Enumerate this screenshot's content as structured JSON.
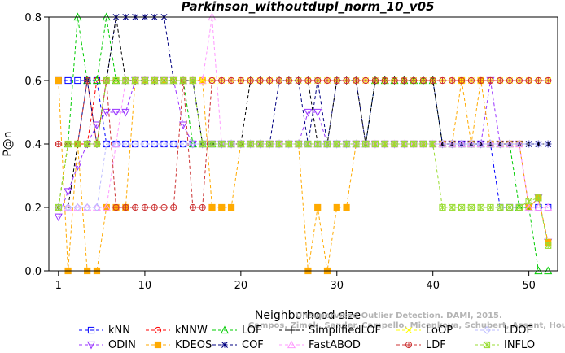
{
  "chart_data": {
    "type": "line",
    "title": "Parkinson_withoutdupl_norm_10_v05",
    "xlabel": "Neighborhood size",
    "ylabel": "P@n",
    "xlim": [
      0,
      53
    ],
    "ylim": [
      0,
      0.8
    ],
    "xticks": [
      1,
      10,
      20,
      30,
      40,
      50
    ],
    "yticks": [
      0.0,
      0.2,
      0.4,
      0.6,
      0.8
    ],
    "grid": false,
    "legend_position": "bottom",
    "watermark": "Unsupervised Outlier Detection. DAMI, 2015. Campos, Zimek, Sander, Campello, Micenkova, Schubert, Assent, Houle",
    "x": [
      1,
      2,
      3,
      4,
      5,
      6,
      7,
      8,
      9,
      10,
      11,
      12,
      13,
      14,
      15,
      16,
      17,
      18,
      19,
      20,
      21,
      22,
      23,
      24,
      25,
      26,
      27,
      28,
      29,
      30,
      31,
      32,
      33,
      34,
      35,
      36,
      37,
      38,
      39,
      40,
      41,
      42,
      43,
      44,
      45,
      46,
      47,
      48,
      49,
      50,
      51,
      52
    ],
    "series": [
      {
        "name": "kNN",
        "color": "#0000ff",
        "marker": "square",
        "values": [
          0.6,
          0.6,
          0.6,
          0.6,
          0.6,
          0.4,
          0.4,
          0.4,
          0.4,
          0.4,
          0.4,
          0.4,
          0.4,
          0.4,
          0.4,
          0.4,
          0.4,
          0.4,
          0.4,
          0.4,
          0.4,
          0.4,
          0.4,
          0.4,
          0.4,
          0.4,
          0.4,
          0.4,
          0.4,
          0.4,
          0.4,
          0.4,
          0.4,
          0.4,
          0.4,
          0.4,
          0.4,
          0.4,
          0.4,
          0.4,
          0.4,
          0.4,
          0.4,
          0.4,
          0.4,
          0.4,
          0.2,
          0.2,
          0.2,
          0.2,
          0.2,
          0.2
        ]
      },
      {
        "name": "ODIN",
        "color": "#9933ff",
        "marker": "triangle-down",
        "values": [
          0.17,
          0.25,
          0.33,
          0.4,
          0.46,
          0.5,
          0.5,
          0.5,
          0.6,
          0.6,
          0.6,
          0.6,
          0.6,
          0.46,
          0.4,
          0.4,
          0.4,
          0.4,
          0.4,
          0.4,
          0.4,
          0.4,
          0.4,
          0.4,
          0.4,
          0.4,
          0.5,
          0.5,
          0.4,
          0.4,
          0.4,
          0.4,
          0.4,
          0.4,
          0.4,
          0.4,
          0.4,
          0.4,
          0.4,
          0.4,
          0.4,
          0.4,
          0.4,
          0.4,
          0.4,
          0.6,
          0.4,
          0.4,
          0.4,
          0.2,
          0.23,
          0.09
        ]
      },
      {
        "name": "kNNW",
        "color": "#ff0000",
        "marker": "circle",
        "values": [
          0.4,
          0.4,
          0.4,
          0.4,
          0.6,
          0.6,
          0.6,
          0.6,
          0.6,
          0.6,
          0.6,
          0.6,
          0.6,
          0.6,
          0.6,
          0.6,
          0.6,
          0.6,
          0.6,
          0.6,
          0.6,
          0.6,
          0.6,
          0.6,
          0.6,
          0.6,
          0.6,
          0.6,
          0.6,
          0.6,
          0.6,
          0.6,
          0.6,
          0.6,
          0.6,
          0.6,
          0.6,
          0.6,
          0.6,
          0.6,
          0.6,
          0.6,
          0.6,
          0.6,
          0.6,
          0.6,
          0.6,
          0.6,
          0.6,
          0.6,
          0.6,
          0.6
        ]
      },
      {
        "name": "KDEOS",
        "color": "#ffaa00",
        "marker": "square-filled",
        "values": [
          0.6,
          0.0,
          0.4,
          0.0,
          0.0,
          0.2,
          0.2,
          0.2,
          0.6,
          0.6,
          0.6,
          0.6,
          0.6,
          0.6,
          0.6,
          0.6,
          0.2,
          0.2,
          0.2,
          0.4,
          0.4,
          0.4,
          0.4,
          0.4,
          0.4,
          0.4,
          0.0,
          0.2,
          0.0,
          0.2,
          0.2,
          0.4,
          0.4,
          0.4,
          0.4,
          0.4,
          0.4,
          0.4,
          0.4,
          0.4,
          0.4,
          0.4,
          0.6,
          0.4,
          0.6,
          0.4,
          0.4,
          0.4,
          0.4,
          0.2,
          0.23,
          0.09
        ]
      },
      {
        "name": "LOF",
        "color": "#00cc00",
        "marker": "triangle-up",
        "values": [
          0.2,
          0.4,
          0.8,
          0.6,
          0.6,
          0.8,
          0.6,
          0.6,
          0.6,
          0.6,
          0.6,
          0.6,
          0.6,
          0.6,
          0.4,
          0.4,
          0.4,
          0.4,
          0.4,
          0.4,
          0.4,
          0.4,
          0.4,
          0.4,
          0.4,
          0.4,
          0.4,
          0.4,
          0.4,
          0.4,
          0.4,
          0.4,
          0.4,
          0.6,
          0.6,
          0.6,
          0.6,
          0.6,
          0.6,
          0.6,
          0.4,
          0.4,
          0.4,
          0.4,
          0.4,
          0.4,
          0.4,
          0.4,
          0.2,
          0.2,
          0.0,
          0.0
        ]
      },
      {
        "name": "COF",
        "color": "#000080",
        "marker": "star",
        "values": [
          0.2,
          0.4,
          0.4,
          0.6,
          0.4,
          0.6,
          0.8,
          0.8,
          0.8,
          0.8,
          0.8,
          0.8,
          0.6,
          0.6,
          0.6,
          0.4,
          0.4,
          0.4,
          0.4,
          0.4,
          0.4,
          0.4,
          0.4,
          0.6,
          0.6,
          0.6,
          0.4,
          0.6,
          0.4,
          0.6,
          0.6,
          0.6,
          0.4,
          0.6,
          0.6,
          0.6,
          0.6,
          0.6,
          0.6,
          0.6,
          0.4,
          0.4,
          0.4,
          0.4,
          0.4,
          0.4,
          0.4,
          0.4,
          0.4,
          0.4,
          0.4,
          0.4
        ]
      },
      {
        "name": "SimplifiedLOF",
        "color": "#000000",
        "marker": "plus",
        "values": [
          0.2,
          0.2,
          0.4,
          0.4,
          0.4,
          0.6,
          0.8,
          0.6,
          0.6,
          0.6,
          0.6,
          0.6,
          0.6,
          0.6,
          0.6,
          0.4,
          0.4,
          0.4,
          0.4,
          0.4,
          0.6,
          0.6,
          0.6,
          0.6,
          0.6,
          0.6,
          0.6,
          0.4,
          0.4,
          0.6,
          0.6,
          0.6,
          0.4,
          0.6,
          0.6,
          0.6,
          0.6,
          0.6,
          0.6,
          0.6,
          0.4,
          0.4,
          0.4,
          0.4,
          0.4,
          0.4,
          0.4,
          0.4,
          0.4,
          0.4,
          0.4,
          0.4
        ]
      },
      {
        "name": "FastABOD",
        "color": "#ff99ff",
        "marker": "triangle-up",
        "values": [
          0.2,
          0.2,
          0.2,
          0.2,
          0.2,
          0.2,
          0.4,
          0.6,
          0.6,
          0.6,
          0.6,
          0.6,
          0.6,
          0.6,
          0.6,
          0.6,
          0.8,
          0.4,
          0.4,
          0.4,
          0.4,
          0.4,
          0.4,
          0.4,
          0.4,
          0.4,
          0.4,
          0.4,
          0.4,
          0.4,
          0.4,
          0.4,
          0.4,
          0.4,
          0.4,
          0.4,
          0.4,
          0.4,
          0.4,
          0.4,
          0.4,
          0.4,
          0.4,
          0.4,
          0.4,
          0.4,
          0.4,
          0.4,
          0.4,
          0.2,
          0.2,
          0.2
        ]
      },
      {
        "name": "LoOP",
        "color": "#ffff00",
        "marker": "x",
        "values": [
          0.2,
          0.4,
          0.4,
          0.4,
          0.4,
          0.6,
          0.6,
          0.6,
          0.6,
          0.6,
          0.6,
          0.6,
          0.6,
          0.6,
          0.6,
          0.6,
          0.6,
          0.6,
          0.6,
          0.6,
          0.6,
          0.6,
          0.6,
          0.6,
          0.6,
          0.6,
          0.6,
          0.6,
          0.6,
          0.6,
          0.6,
          0.6,
          0.6,
          0.6,
          0.6,
          0.6,
          0.6,
          0.6,
          0.6,
          0.6,
          0.6,
          0.6,
          0.6,
          0.6,
          0.6,
          0.6,
          0.6,
          0.6,
          0.6,
          0.6,
          0.6,
          0.6
        ]
      },
      {
        "name": "LDF",
        "color": "#cc3333",
        "marker": "circle-plus",
        "values": [
          0.4,
          0.4,
          0.4,
          0.6,
          0.4,
          0.6,
          0.2,
          0.2,
          0.2,
          0.2,
          0.2,
          0.2,
          0.2,
          0.6,
          0.2,
          0.2,
          0.6,
          0.6,
          0.6,
          0.6,
          0.6,
          0.6,
          0.6,
          0.6,
          0.6,
          0.6,
          0.6,
          0.6,
          0.6,
          0.6,
          0.6,
          0.6,
          0.6,
          0.6,
          0.6,
          0.6,
          0.6,
          0.6,
          0.6,
          0.6,
          0.6,
          0.6,
          0.6,
          0.6,
          0.6,
          0.6,
          0.6,
          0.6,
          0.6,
          0.6,
          0.6,
          0.6
        ]
      },
      {
        "name": "LDOF",
        "color": "#bbbbff",
        "marker": "diamond",
        "values": [
          0.2,
          0.2,
          0.2,
          0.2,
          0.2,
          0.4,
          0.4,
          0.4,
          0.4,
          0.4,
          0.4,
          0.4,
          0.4,
          0.4,
          0.4,
          0.4,
          0.4,
          0.4,
          0.4,
          0.4,
          0.4,
          0.4,
          0.4,
          0.4,
          0.4,
          0.4,
          0.4,
          0.4,
          0.4,
          0.4,
          0.4,
          0.4,
          0.4,
          0.4,
          0.4,
          0.4,
          0.4,
          0.4,
          0.4,
          0.4,
          0.4,
          0.4,
          0.4,
          0.4,
          0.4,
          0.4,
          0.4,
          0.4,
          0.4,
          0.4,
          0.4,
          0.4
        ]
      },
      {
        "name": "INFLO",
        "color": "#99dd33",
        "marker": "star-box",
        "values": [
          0.2,
          0.4,
          0.4,
          0.4,
          0.4,
          0.6,
          0.6,
          0.6,
          0.6,
          0.6,
          0.6,
          0.6,
          0.6,
          0.6,
          0.6,
          0.4,
          0.4,
          0.4,
          0.4,
          0.4,
          0.4,
          0.4,
          0.4,
          0.4,
          0.4,
          0.4,
          0.4,
          0.4,
          0.4,
          0.4,
          0.4,
          0.4,
          0.4,
          0.4,
          0.4,
          0.4,
          0.4,
          0.4,
          0.4,
          0.4,
          0.2,
          0.2,
          0.2,
          0.2,
          0.2,
          0.2,
          0.2,
          0.2,
          0.2,
          0.22,
          0.23,
          0.08
        ]
      }
    ]
  }
}
